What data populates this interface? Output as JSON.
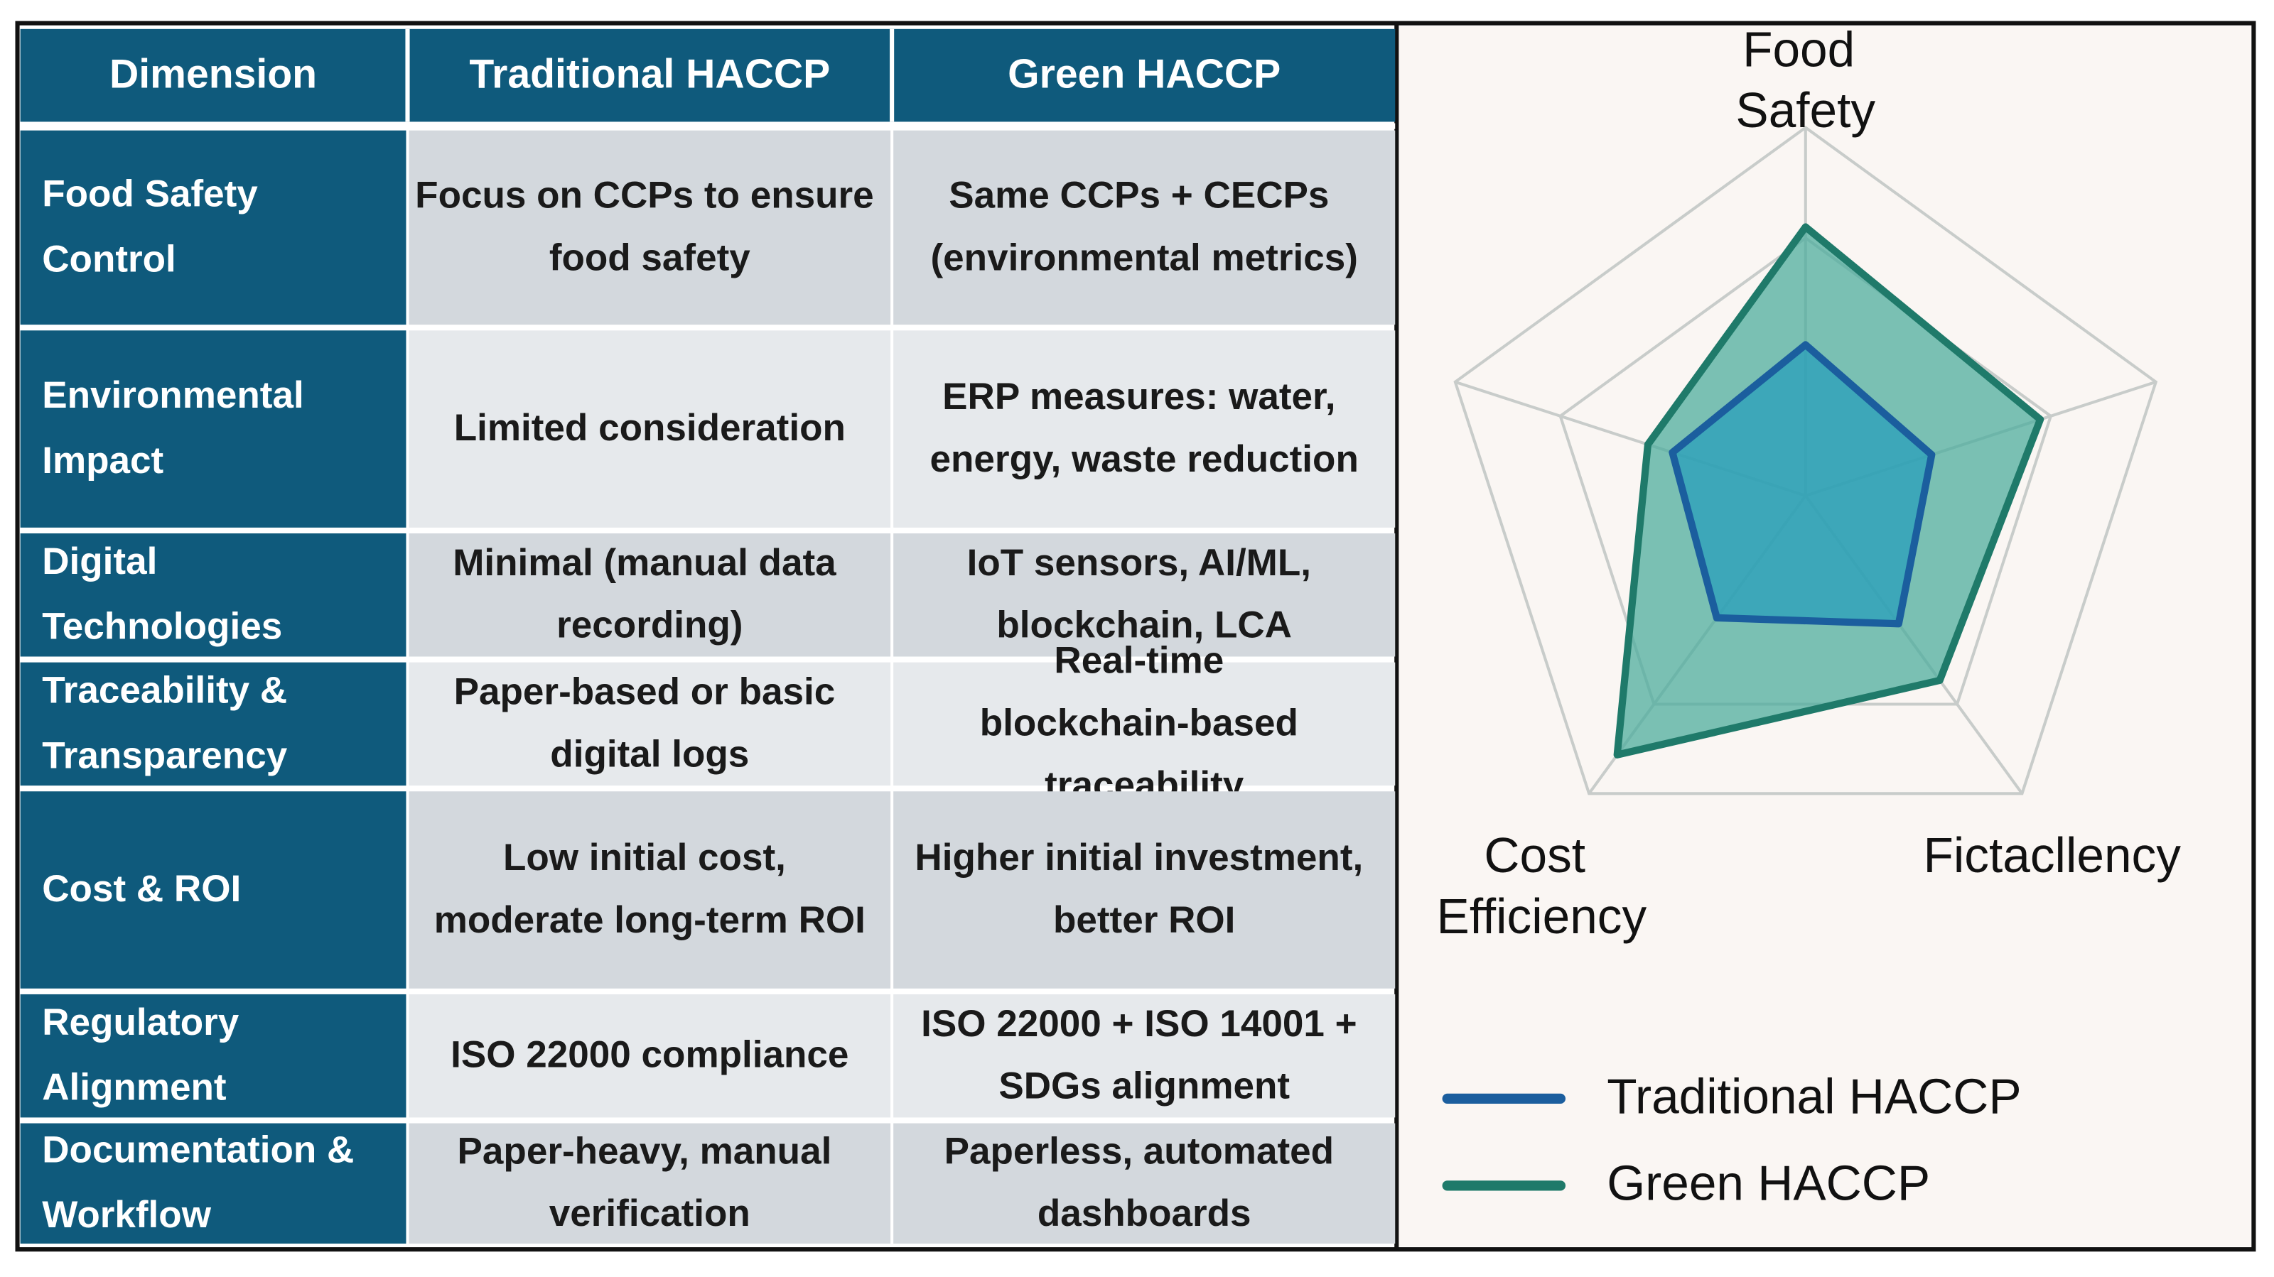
{
  "table": {
    "header": [
      "Dimension",
      "Traditional HACCP",
      "Green HACCP"
    ],
    "rows": [
      [
        "Food Safety Control",
        "Focus on CCPs to ensure food safety",
        "Same CCPs + CECPs (environmental metrics)"
      ],
      [
        "Environmental Impact",
        "Limited consideration",
        "ERP measures: water, energy, waste reduction"
      ],
      [
        "Digital Technologies",
        "Minimal (manual data recording)",
        "IoT sensors, AI/ML, blockchain, LCA"
      ],
      [
        "Traceability & Transparency",
        "Paper-based or basic digital logs",
        "Real-time blockchain-based traceability"
      ],
      [
        "Cost & ROI",
        "Low initial cost, moderate long-term ROI",
        "Higher initial investment, better ROI"
      ],
      [
        "Regulatory Alignment",
        "ISO 22000 compliance",
        "ISO 22000 + ISO 14001 + SDGs alignment"
      ],
      [
        "Documentation & Workflow",
        "Paper-heavy, manual verification",
        "Paperless, automated dashboards"
      ]
    ]
  },
  "chart_data": {
    "type": "radar",
    "categories": [
      "Food Safety",
      null,
      "Fictacllency",
      "Cost Efficiency",
      null
    ],
    "rlim": [
      0,
      10
    ],
    "rgrid": [
      7,
      10
    ],
    "series": [
      {
        "name": "Traditional HACCP",
        "color": "#1b5e9e",
        "fill": "#2a9fbb",
        "values": [
          4.1,
          3.6,
          4.3,
          4.1,
          3.8
        ]
      },
      {
        "name": "Green HACCP",
        "color": "#1f7a6a",
        "fill": "#4fae9d",
        "values": [
          7.3,
          6.7,
          6.2,
          8.7,
          4.5
        ]
      }
    ]
  }
}
